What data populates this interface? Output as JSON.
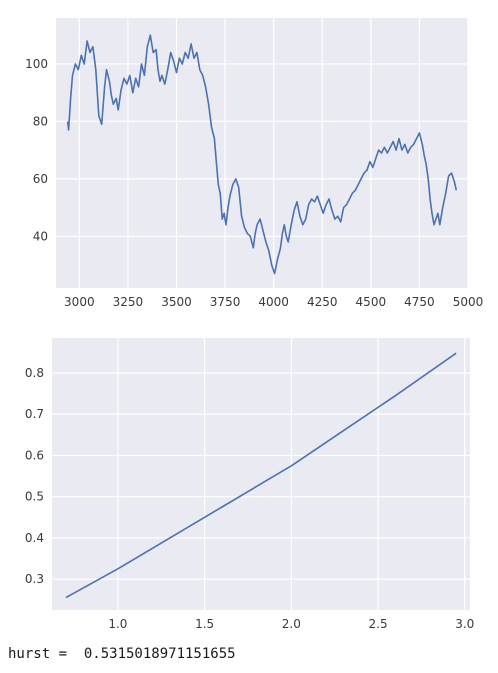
{
  "chart_data": [
    {
      "type": "line",
      "title": "",
      "xlabel": "",
      "ylabel": "",
      "xlim": [
        2880,
        5000
      ],
      "ylim": [
        22,
        116
      ],
      "grid": true,
      "colors": {
        "background": "#eaeaf2",
        "grid": "#ffffff",
        "line": "#4c72b0"
      },
      "x_ticks": [
        3000,
        3250,
        3500,
        3750,
        4000,
        4250,
        4500,
        4750,
        5000
      ],
      "x_tick_labels": [
        "3000",
        "3250",
        "3500",
        "3750",
        "4000",
        "4250",
        "4500",
        "4750",
        "5000"
      ],
      "y_ticks": [
        40,
        60,
        80,
        100
      ],
      "y_tick_labels": [
        "40",
        "60",
        "80",
        "100"
      ],
      "series": [
        {
          "x": [
            2940,
            2945,
            2955,
            2965,
            2980,
            2995,
            3010,
            3025,
            3040,
            3055,
            3070,
            3085,
            3100,
            3115,
            3130,
            3140,
            3155,
            3165,
            3175,
            3190,
            3200,
            3215,
            3230,
            3245,
            3260,
            3275,
            3290,
            3305,
            3320,
            3335,
            3350,
            3365,
            3380,
            3395,
            3405,
            3415,
            3425,
            3440,
            3455,
            3470,
            3485,
            3500,
            3515,
            3530,
            3545,
            3560,
            3575,
            3590,
            3605,
            3620,
            3635,
            3650,
            3665,
            3680,
            3695,
            3705,
            3715,
            3725,
            3735,
            3745,
            3755,
            3765,
            3775,
            3790,
            3805,
            3820,
            3835,
            3850,
            3865,
            3880,
            3895,
            3905,
            3915,
            3930,
            3945,
            3960,
            3975,
            3990,
            4005,
            4020,
            4035,
            4045,
            4055,
            4065,
            4075,
            4090,
            4105,
            4120,
            4135,
            4150,
            4165,
            4180,
            4195,
            4210,
            4225,
            4240,
            4255,
            4270,
            4285,
            4300,
            4315,
            4330,
            4345,
            4360,
            4375,
            4390,
            4405,
            4420,
            4435,
            4450,
            4465,
            4480,
            4495,
            4510,
            4525,
            4540,
            4555,
            4570,
            4585,
            4600,
            4615,
            4630,
            4645,
            4660,
            4675,
            4690,
            4705,
            4720,
            4735,
            4750,
            4765,
            4775,
            4785,
            4795,
            4805,
            4815,
            4825,
            4835,
            4845,
            4855,
            4870,
            4885,
            4900,
            4915,
            4930,
            4940
          ],
          "y": [
            80,
            77,
            88,
            96,
            100,
            98,
            103,
            100,
            108,
            104,
            106,
            98,
            82,
            79,
            92,
            98,
            94,
            89,
            86,
            88,
            84,
            91,
            95,
            93,
            96,
            90,
            95,
            92,
            100,
            96,
            106,
            110,
            104,
            105,
            98,
            94,
            96,
            93,
            98,
            104,
            101,
            97,
            102,
            100,
            104,
            102,
            107,
            102,
            104,
            98,
            96,
            92,
            86,
            78,
            74,
            66,
            58,
            55,
            46,
            48,
            44,
            50,
            54,
            58,
            60,
            57,
            47,
            43,
            41,
            40,
            36,
            41,
            44,
            46,
            42,
            38,
            35,
            30,
            27,
            32,
            36,
            41,
            44,
            40,
            38,
            44,
            49,
            52,
            47,
            44,
            46,
            51,
            53,
            52,
            54,
            51,
            48,
            51,
            53,
            49,
            46,
            47,
            45,
            50,
            51,
            53,
            55,
            56,
            58,
            60,
            62,
            63,
            66,
            64,
            67,
            70,
            69,
            71,
            69,
            71,
            73,
            70,
            74,
            70,
            72,
            69,
            71,
            72,
            74,
            76,
            72,
            68,
            65,
            60,
            53,
            48,
            44,
            46,
            48,
            44,
            50,
            55,
            61,
            62,
            59,
            56
          ]
        }
      ]
    },
    {
      "type": "line",
      "title": "",
      "xlabel": "",
      "ylabel": "",
      "xlim": [
        0.62,
        3.03
      ],
      "ylim": [
        0.225,
        0.885
      ],
      "grid": true,
      "colors": {
        "background": "#eaeaf2",
        "grid": "#ffffff",
        "line": "#4c72b0"
      },
      "x_ticks": [
        1.0,
        1.5,
        2.0,
        2.5,
        3.0
      ],
      "x_tick_labels": [
        "1.0",
        "1.5",
        "2.0",
        "2.5",
        "3.0"
      ],
      "y_ticks": [
        0.3,
        0.4,
        0.5,
        0.6,
        0.7,
        0.8
      ],
      "y_tick_labels": [
        "0.3",
        "0.4",
        "0.5",
        "0.6",
        "0.7",
        "0.8"
      ],
      "series": [
        {
          "x": [
            0.7,
            1.0,
            1.3,
            1.6,
            1.9,
            2.0,
            2.3,
            2.6,
            2.95
          ],
          "y": [
            0.255,
            0.325,
            0.4,
            0.475,
            0.55,
            0.575,
            0.66,
            0.745,
            0.848
          ]
        }
      ]
    }
  ],
  "output": {
    "hurst_text": "hurst =  0.5315018971151655"
  }
}
